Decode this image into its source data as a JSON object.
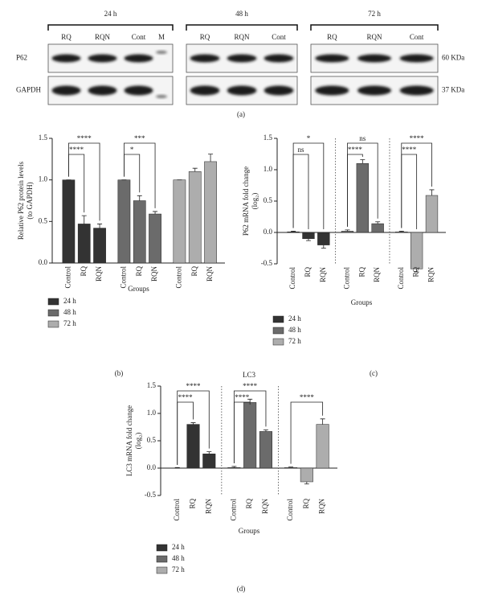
{
  "blot": {
    "label": "(a)",
    "timepoints": [
      {
        "name": "24 h",
        "lanes": [
          "RQ",
          "RQN",
          "Cont",
          "M"
        ]
      },
      {
        "name": "48 h",
        "lanes": [
          "RQ",
          "RQN",
          "Cont"
        ]
      },
      {
        "name": "72 h",
        "lanes": [
          "RQ",
          "RQN",
          "Cont"
        ]
      }
    ],
    "rows": [
      "P62",
      "GAPDH"
    ],
    "sizes": [
      "60 KDa",
      "37 KDa"
    ]
  },
  "chart_data": [
    {
      "type": "bar",
      "panel_label": "(b)",
      "ylabel": [
        "Relative P62 protein levels",
        "(to GAPDH)"
      ],
      "xlabel": "Groups",
      "categories": [
        "Control",
        "RQ",
        "RQN"
      ],
      "series": [
        {
          "name": "24 h",
          "color": "#333333",
          "values": [
            1.0,
            0.47,
            0.42
          ],
          "errors": [
            0,
            0.1,
            0.05
          ]
        },
        {
          "name": "48 h",
          "color": "#6b6b6b",
          "values": [
            1.0,
            0.75,
            0.59
          ],
          "errors": [
            0,
            0.06,
            0.03
          ]
        },
        {
          "name": "72 h",
          "color": "#adadad",
          "values": [
            1.0,
            1.1,
            1.22
          ],
          "errors": [
            0,
            0.04,
            0.09
          ]
        }
      ],
      "ylim": [
        0,
        1.5
      ],
      "yticks": [
        {
          "value": 0,
          "label": "0.0"
        },
        0.5,
        {
          "value": 1,
          "label": "1.0"
        },
        1.5
      ],
      "separators": false,
      "legend": "below",
      "annotations": [
        {
          "series": 0,
          "from": 0,
          "to": 1,
          "label": "****"
        },
        {
          "series": 0,
          "from": 0,
          "to": 2,
          "label": "****"
        },
        {
          "series": 1,
          "from": 0,
          "to": 1,
          "label": "*"
        },
        {
          "series": 1,
          "from": 0,
          "to": 2,
          "label": "***"
        }
      ]
    },
    {
      "type": "bar",
      "panel_label": "(c)",
      "ylabel": [
        "P62 mRNA fold change",
        "(log₂)"
      ],
      "xlabel": "Groups",
      "categories": [
        "Control",
        "RQ",
        "RQN"
      ],
      "series": [
        {
          "name": "24 h",
          "color": "#333333",
          "values": [
            0.01,
            -0.1,
            -0.2
          ],
          "errors": [
            0.01,
            0.03,
            0.05
          ]
        },
        {
          "name": "48 h",
          "color": "#6b6b6b",
          "values": [
            0.02,
            1.1,
            0.14
          ],
          "errors": [
            0.02,
            0.06,
            0.03
          ]
        },
        {
          "name": "72 h",
          "color": "#adadad",
          "values": [
            0.01,
            -0.58,
            0.59
          ],
          "errors": [
            0.01,
            0.05,
            0.09
          ]
        }
      ],
      "ylim": [
        -0.5,
        1.5
      ],
      "yticks": [
        -0.5,
        {
          "value": 0,
          "label": "0.0"
        },
        0.5,
        {
          "value": 1,
          "label": "1.0"
        },
        1.5
      ],
      "separators": true,
      "legend": "below",
      "annotations": [
        {
          "series": 0,
          "from": 0,
          "to": 1,
          "label": "ns"
        },
        {
          "series": 0,
          "from": 0,
          "to": 2,
          "label": "*"
        },
        {
          "series": 1,
          "from": 0,
          "to": 1,
          "label": "****"
        },
        {
          "series": 1,
          "from": 0,
          "to": 2,
          "label": "ns"
        },
        {
          "series": 2,
          "from": 0,
          "to": 1,
          "label": "****"
        },
        {
          "series": 2,
          "from": 0,
          "to": 2,
          "label": "****"
        }
      ]
    },
    {
      "type": "bar",
      "panel_label": "(d)",
      "title": "LC3",
      "ylabel": [
        "LC3 mRNA fold change",
        "(log₂)"
      ],
      "xlabel": "Groups",
      "categories": [
        "Control",
        "RQ",
        "RQN"
      ],
      "series": [
        {
          "name": "24 h",
          "color": "#333333",
          "values": [
            0,
            0.8,
            0.26
          ],
          "errors": [
            0.01,
            0.03,
            0.04
          ]
        },
        {
          "name": "48 h",
          "color": "#6b6b6b",
          "values": [
            0.01,
            1.2,
            0.67
          ],
          "errors": [
            0.02,
            0.06,
            0.03
          ]
        },
        {
          "name": "72 h",
          "color": "#adadad",
          "values": [
            0.01,
            -0.25,
            0.8
          ],
          "errors": [
            0.01,
            0.04,
            0.1
          ]
        }
      ],
      "ylim": [
        -0.5,
        1.5
      ],
      "yticks": [
        -0.5,
        {
          "value": 0,
          "label": "0.0"
        },
        0.5,
        {
          "value": 1,
          "label": "1.0"
        },
        1.5
      ],
      "separators": true,
      "legend": "below",
      "annotations": [
        {
          "series": 0,
          "from": 0,
          "to": 1,
          "label": "****"
        },
        {
          "series": 0,
          "from": 0,
          "to": 2,
          "label": "****"
        },
        {
          "series": 1,
          "from": 0,
          "to": 1,
          "label": "****"
        },
        {
          "series": 1,
          "from": 0,
          "to": 2,
          "label": "****"
        },
        {
          "series": 2,
          "from": 0,
          "to": 2,
          "label": "****"
        }
      ]
    }
  ]
}
